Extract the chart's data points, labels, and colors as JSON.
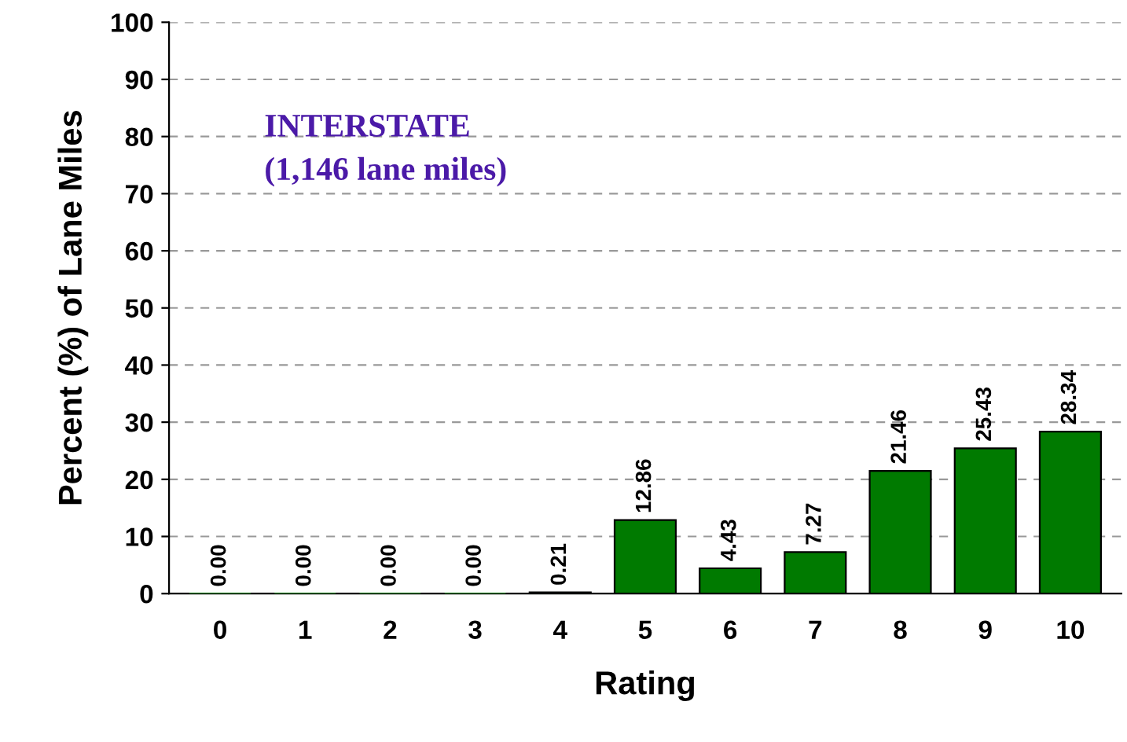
{
  "chart_data": {
    "type": "bar",
    "xlabel": "Rating",
    "ylabel": "Percent (%) of Lane Miles",
    "categories": [
      "0",
      "1",
      "2",
      "3",
      "4",
      "5",
      "6",
      "7",
      "8",
      "9",
      "10"
    ],
    "values": [
      0.0,
      0.0,
      0.0,
      0.0,
      0.21,
      12.86,
      4.43,
      7.27,
      21.46,
      25.43,
      28.34
    ],
    "value_labels": [
      "0.00",
      "0.00",
      "0.00",
      "0.00",
      "0.21",
      "12.86",
      "4.43",
      "7.27",
      "21.46",
      "25.43",
      "28.34"
    ],
    "color": "#007a00",
    "ylim": [
      0,
      100
    ],
    "yticks": [
      0,
      10,
      20,
      30,
      40,
      50,
      60,
      70,
      80,
      90,
      100
    ],
    "grid": "y",
    "annotations": [
      "INTERSTATE\n(1,146 lane miles)"
    ]
  }
}
